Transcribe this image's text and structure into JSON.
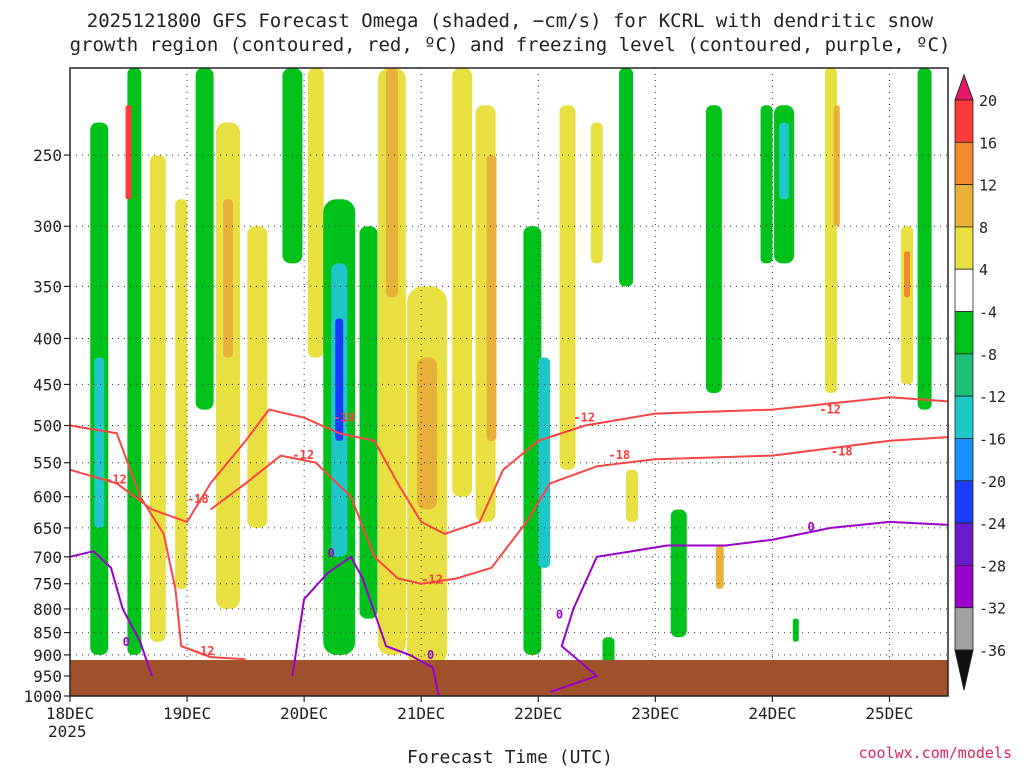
{
  "chart_data": {
    "type": "heatmap",
    "title_line1": "2025121800 GFS Forecast Omega (shaded, −cm/s) for KCRL with dendritic snow",
    "title_line2": "growth region (contoured, red, ºC) and freezing level (contoured, purple, ºC)",
    "xlabel": "Forecast Time (UTC)",
    "x_ticks": [
      "18DEC",
      "19DEC",
      "20DEC",
      "21DEC",
      "22DEC",
      "23DEC",
      "24DEC",
      "25DEC"
    ],
    "x_tick_sub": "2025",
    "ylabel": "",
    "y_ticks": [
      250,
      300,
      350,
      400,
      450,
      500,
      550,
      600,
      650,
      700,
      750,
      800,
      850,
      900,
      950,
      1000
    ],
    "y_range_hpa": [
      200,
      1000
    ],
    "y_scale": "log",
    "x_range_days": [
      0,
      7.5
    ],
    "grid": true,
    "colorbar": {
      "ticks": [
        20,
        16,
        12,
        8,
        4,
        -4,
        -8,
        -12,
        -16,
        -20,
        -24,
        -28,
        -32,
        -36
      ],
      "colors": [
        "#e6196b",
        "#ff3b3b",
        "#f08a2a",
        "#e8b23a",
        "#e8e040",
        "#ffffff",
        "#00c21a",
        "#1fbf7a",
        "#1fc8c8",
        "#1a90ff",
        "#1a3cff",
        "#6a1acc",
        "#9900cc",
        "#a0a0a0",
        "#111111"
      ]
    },
    "contours": {
      "red_levels": [
        -12,
        -18
      ],
      "purple_levels": [
        0
      ]
    },
    "red_contour_labels": [
      "-12",
      "-18",
      "-12",
      "-18",
      "-12",
      "-12",
      "-18",
      "-12",
      "-18",
      "-12"
    ],
    "purple_contour_labels": [
      "0",
      "0",
      "0",
      "0",
      "0"
    ],
    "credit": "coolwx.com/models"
  }
}
